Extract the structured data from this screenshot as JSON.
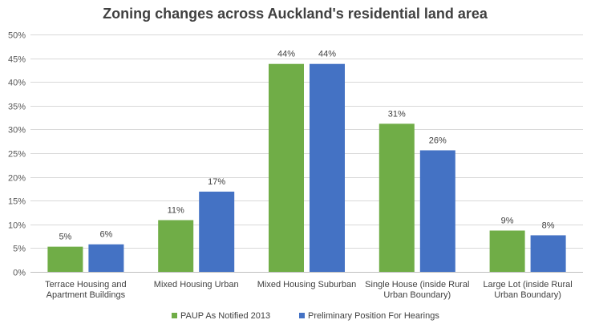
{
  "chart_data": {
    "type": "bar",
    "title": "Zoning changes across Auckland's residential land area",
    "xlabel": "",
    "ylabel": "",
    "ylim": [
      0,
      50
    ],
    "yticks": [
      "0%",
      "5%",
      "10%",
      "15%",
      "20%",
      "25%",
      "30%",
      "35%",
      "40%",
      "45%",
      "50%"
    ],
    "grid": true,
    "legend_position": "bottom",
    "categories": [
      [
        "Terrace Housing and",
        "Apartment Buildings"
      ],
      [
        "Mixed Housing Urban"
      ],
      [
        "Mixed Housing Suburban"
      ],
      [
        "Single House (inside Rural",
        "Urban Boundary)"
      ],
      [
        "Large Lot (inside Rural",
        "Urban Boundary)"
      ]
    ],
    "series": [
      {
        "name": "PAUP As Notified 2013",
        "color": "#70ad47",
        "values": [
          5.3,
          10.9,
          43.8,
          31.2,
          8.7
        ],
        "labels": [
          "5%",
          "11%",
          "44%",
          "31%",
          "9%"
        ]
      },
      {
        "name": "Preliminary Position For Hearings",
        "color": "#4472c4",
        "values": [
          5.8,
          16.9,
          43.8,
          25.6,
          7.7
        ],
        "labels": [
          "6%",
          "17%",
          "44%",
          "26%",
          "8%"
        ]
      }
    ]
  }
}
